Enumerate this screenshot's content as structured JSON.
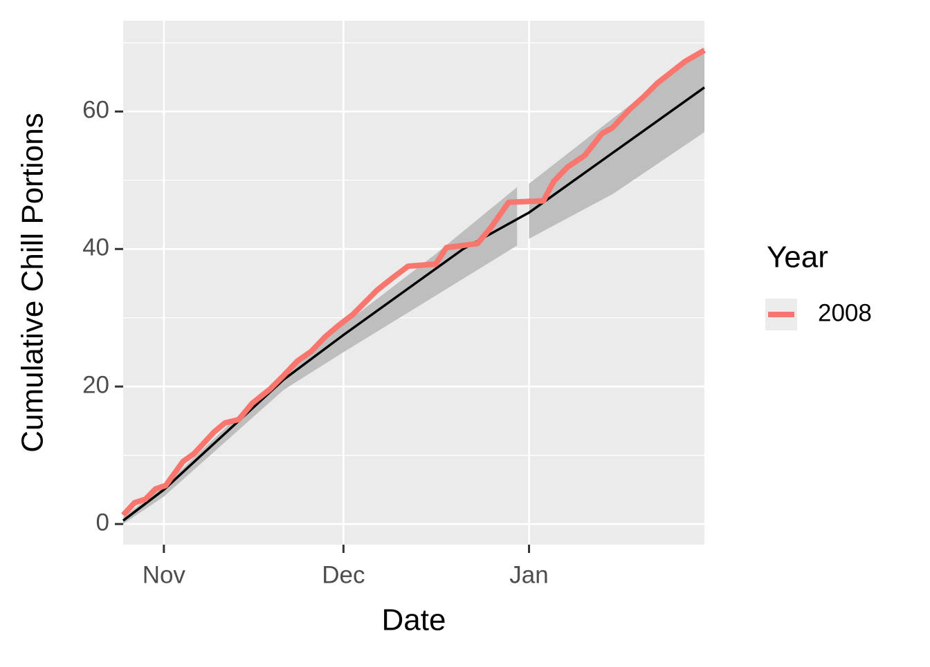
{
  "chart_data": {
    "type": "line",
    "xlabel": "Date",
    "ylabel": "Cumulative Chill Portions",
    "legend_title": "Year",
    "legend_position": "right",
    "grid": true,
    "xlim": [
      -6.8,
      90.3
    ],
    "ylim": [
      -3,
      73.2
    ],
    "xticks": [
      {
        "value": 0,
        "label": "Nov"
      },
      {
        "value": 30,
        "label": "Dec"
      },
      {
        "value": 61,
        "label": "Jan"
      }
    ],
    "yticks": [
      0,
      20,
      40,
      60
    ],
    "yminor": [
      10,
      30,
      50,
      70
    ],
    "series": [
      {
        "name": "2008",
        "color": "#f8766d",
        "x": [
          -6.8,
          -4.9,
          -3.1,
          -1.4,
          0.3,
          3.2,
          5.0,
          8.4,
          10.2,
          12.5,
          14.8,
          17.7,
          20.0,
          22.3,
          24.6,
          26.9,
          29.2,
          31.6,
          35.6,
          38.5,
          40.8,
          45.4,
          47.2,
          52.4,
          54.7,
          57.6,
          63.4,
          65.1,
          67.4,
          70.3,
          73.2,
          74.9,
          77.8,
          80.1,
          82.4,
          87.1,
          90.3
        ],
        "values": [
          1.3,
          3.1,
          3.6,
          5.1,
          5.6,
          9.1,
          10.2,
          13.4,
          14.7,
          15.2,
          17.6,
          19.6,
          21.6,
          23.7,
          25.1,
          27.2,
          28.9,
          30.5,
          34.0,
          36.0,
          37.5,
          37.8,
          40.2,
          40.8,
          43.2,
          46.8,
          47.0,
          49.8,
          51.9,
          53.6,
          56.8,
          57.6,
          60.3,
          62.1,
          64.1,
          67.3,
          68.9
        ]
      }
    ],
    "median_line": {
      "color": "#000000",
      "x": [
        -6.8,
        0,
        20,
        30,
        50,
        61,
        75,
        90.3
      ],
      "values": [
        0.5,
        5,
        21,
        27.5,
        40,
        45.3,
        54,
        63.5
      ]
    },
    "band": {
      "color": "#bebebe",
      "x": [
        -6.8,
        0,
        20,
        30,
        45,
        59,
        60,
        61,
        75,
        90.3
      ],
      "lower": [
        0,
        4,
        19.5,
        25,
        33,
        40.5,
        null,
        41.5,
        48,
        57
      ],
      "upper": [
        1,
        5.5,
        22,
        29,
        39,
        49,
        null,
        49.5,
        59,
        69.3
      ]
    }
  }
}
